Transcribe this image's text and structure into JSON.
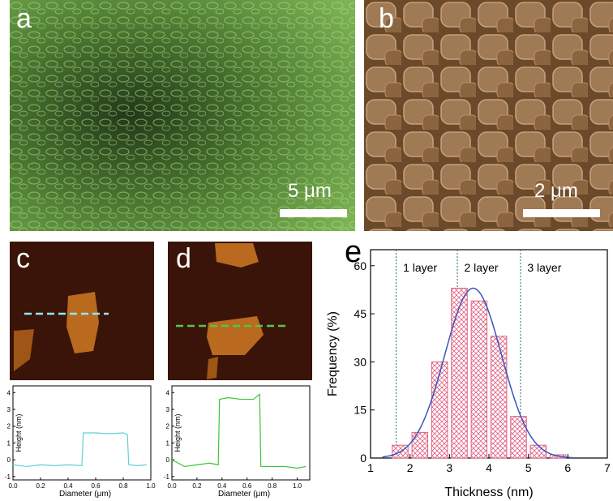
{
  "panels": {
    "a": {
      "label": "a",
      "scale": "5 μm"
    },
    "b": {
      "label": "b",
      "scale": "2 μm"
    },
    "c": {
      "label": "c"
    },
    "d": {
      "label": "d"
    },
    "e": {
      "label": "e"
    }
  },
  "afm_profile_c": {
    "ylabel": "Height (nm)",
    "xlabel": "Diameter (μm)",
    "xticks": [
      "0.0",
      "0.2",
      "0.4",
      "0.6",
      "0.8",
      "1.0"
    ],
    "yticks": [
      "-1",
      "0",
      "1",
      "2",
      "3",
      "4"
    ],
    "line_color": "#5fd3d0",
    "profile": [
      [
        0.0,
        -0.3
      ],
      [
        0.1,
        -0.4
      ],
      [
        0.2,
        -0.3
      ],
      [
        0.3,
        -0.35
      ],
      [
        0.4,
        -0.3
      ],
      [
        0.5,
        -0.35
      ],
      [
        0.51,
        1.6
      ],
      [
        0.6,
        1.6
      ],
      [
        0.7,
        1.55
      ],
      [
        0.8,
        1.6
      ],
      [
        0.83,
        1.5
      ],
      [
        0.84,
        -0.3
      ],
      [
        0.9,
        -0.35
      ],
      [
        0.97,
        -0.3
      ]
    ]
  },
  "afm_profile_d": {
    "ylabel": "Height (nm)",
    "xlabel": "Diameter (μm)",
    "xticks": [
      "0.0",
      "0.2",
      "0.4",
      "0.6",
      "0.8",
      "1.0"
    ],
    "yticks": [
      "-1",
      "0",
      "1",
      "2",
      "3",
      "4"
    ],
    "line_color": "#3cc43c",
    "profile": [
      [
        0.0,
        0.0
      ],
      [
        0.1,
        -0.4
      ],
      [
        0.2,
        -0.3
      ],
      [
        0.3,
        -0.2
      ],
      [
        0.37,
        -0.3
      ],
      [
        0.38,
        3.6
      ],
      [
        0.45,
        3.7
      ],
      [
        0.55,
        3.6
      ],
      [
        0.65,
        3.6
      ],
      [
        0.7,
        3.9
      ],
      [
        0.71,
        -0.4
      ],
      [
        0.8,
        -0.4
      ],
      [
        0.9,
        -0.4
      ],
      [
        1.0,
        -0.5
      ],
      [
        1.07,
        -0.4
      ]
    ]
  },
  "chart_data": {
    "type": "bar",
    "xlabel": "Thickness (nm)",
    "ylabel": "Frequency (%)",
    "xlim": [
      1,
      7
    ],
    "ylim": [
      0,
      65
    ],
    "xticks": [
      "1",
      "2",
      "3",
      "4",
      "5",
      "6",
      "7"
    ],
    "yticks": [
      "0",
      "15",
      "30",
      "45",
      "60"
    ],
    "annotations": [
      "1 layer",
      "2 layer",
      "3 layer"
    ],
    "layer_lines": [
      1.65,
      3.2,
      4.8
    ],
    "x": [
      1.75,
      2.25,
      2.75,
      3.25,
      3.75,
      4.25,
      4.75,
      5.25,
      5.75
    ],
    "values": [
      4,
      8,
      30,
      53,
      49,
      38,
      13,
      4,
      1
    ],
    "fit_color": "#3557c0",
    "bar_color": "#e06080"
  }
}
